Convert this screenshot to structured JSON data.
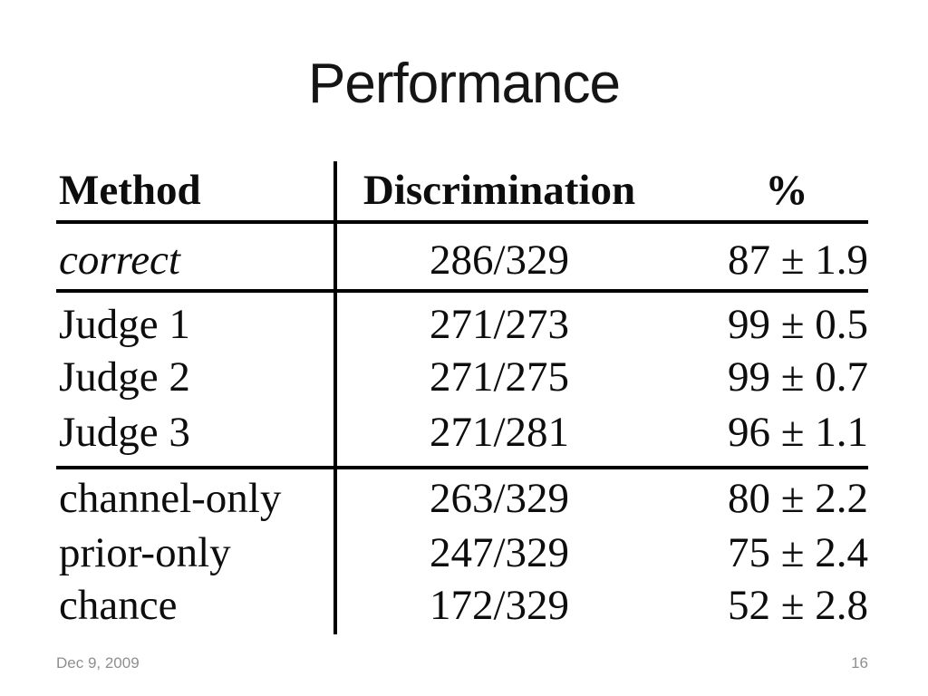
{
  "slide": {
    "title": "Performance",
    "footer": {
      "date": "Dec 9, 2009",
      "page_number": "16"
    }
  },
  "chart_data": {
    "type": "table",
    "title": "Performance",
    "columns": [
      "Method",
      "Discrimination",
      "%"
    ],
    "sections": [
      {
        "rows": [
          {
            "method": "correct",
            "discrimination": "286/329",
            "percent": "87 ± 1.9"
          }
        ]
      },
      {
        "rows": [
          {
            "method": "Judge 1",
            "discrimination": "271/273",
            "percent": "99 ± 0.5"
          },
          {
            "method": "Judge 2",
            "discrimination": "271/275",
            "percent": "99 ± 0.7"
          },
          {
            "method": "Judge 3",
            "discrimination": "271/281",
            "percent": "96 ± 1.1"
          }
        ]
      },
      {
        "rows": [
          {
            "method": "channel-only",
            "discrimination": "263/329",
            "percent": "80 ± 2.2"
          },
          {
            "method": "prior-only",
            "discrimination": "247/329",
            "percent": "75 ± 2.4"
          },
          {
            "method": "chance",
            "discrimination": "172/329",
            "percent": "52 ± 2.8"
          }
        ]
      }
    ]
  }
}
